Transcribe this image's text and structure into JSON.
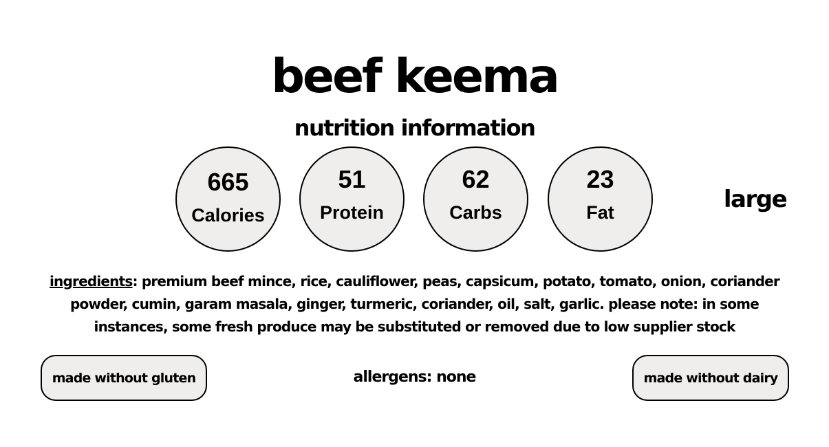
{
  "title": "beef keema",
  "subtitle": "nutrition information",
  "nutrition": [
    {
      "value": "665",
      "label": "Calories"
    },
    {
      "value": "51",
      "label": "Protein"
    },
    {
      "value": "62",
      "label": "Carbs"
    },
    {
      "value": "23",
      "label": "Fat"
    }
  ],
  "size": "large",
  "ingredients": {
    "label": "ingredients",
    "text": ": premium beef mince, rice, cauliflower, peas, capsicum, potato, tomato, onion, coriander powder, cumin, garam masala, ginger, turmeric, coriander, oil, salt, garlic. please note: in some instances, some fresh produce may be substituted or removed due to low supplier stock"
  },
  "badges": {
    "gluten": "made without gluten",
    "dairy": "made without dairy"
  },
  "allergens": "allergens: none"
}
